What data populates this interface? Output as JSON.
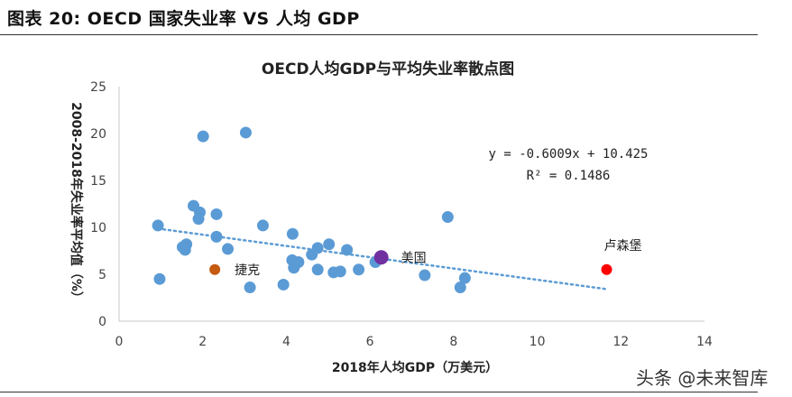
{
  "header": {
    "figure_title": "图表 20:  OECD 国家失业率 VS 人均 GDP"
  },
  "watermark": "头条 @未来智库",
  "chart_data": {
    "type": "scatter",
    "title": "OECD人均GDP与平均失业率散点图",
    "xlabel": "2018年人均GDP（万美元）",
    "ylabel": "2008-2018年失业率平均值（%）",
    "xlim": [
      0,
      14
    ],
    "ylim": [
      0,
      25
    ],
    "xticks": [
      "0",
      "2",
      "4",
      "6",
      "8",
      "10",
      "12",
      "14"
    ],
    "yticks": [
      "0",
      "5",
      "10",
      "15",
      "20",
      "25"
    ],
    "grid": false,
    "colors": {
      "default": "#5B9BD5",
      "czech": "#C55A11",
      "usa": "#7030A0",
      "luxembourg": "#FF0000",
      "trendline": "#5B9BD5"
    },
    "points": [
      {
        "x": 0.93,
        "y": 10.2
      },
      {
        "x": 0.97,
        "y": 4.5
      },
      {
        "x": 2.01,
        "y": 19.7
      },
      {
        "x": 3.03,
        "y": 20.1
      },
      {
        "x": 1.78,
        "y": 12.3
      },
      {
        "x": 1.93,
        "y": 11.6
      },
      {
        "x": 1.9,
        "y": 10.9
      },
      {
        "x": 2.33,
        "y": 11.4
      },
      {
        "x": 1.61,
        "y": 8.2
      },
      {
        "x": 1.52,
        "y": 7.9
      },
      {
        "x": 1.58,
        "y": 7.6
      },
      {
        "x": 2.33,
        "y": 9.0
      },
      {
        "x": 2.6,
        "y": 7.7
      },
      {
        "x": 3.44,
        "y": 10.2
      },
      {
        "x": 4.15,
        "y": 9.3
      },
      {
        "x": 3.13,
        "y": 3.6
      },
      {
        "x": 3.93,
        "y": 3.9
      },
      {
        "x": 4.14,
        "y": 6.5
      },
      {
        "x": 4.29,
        "y": 6.3
      },
      {
        "x": 4.18,
        "y": 5.7
      },
      {
        "x": 4.61,
        "y": 7.1
      },
      {
        "x": 4.75,
        "y": 7.8
      },
      {
        "x": 5.02,
        "y": 8.2
      },
      {
        "x": 5.45,
        "y": 7.6
      },
      {
        "x": 4.75,
        "y": 5.5
      },
      {
        "x": 5.13,
        "y": 5.2
      },
      {
        "x": 5.29,
        "y": 5.3
      },
      {
        "x": 5.73,
        "y": 5.5
      },
      {
        "x": 6.13,
        "y": 6.3
      },
      {
        "x": 7.31,
        "y": 4.9
      },
      {
        "x": 7.86,
        "y": 11.1
      },
      {
        "x": 8.27,
        "y": 4.6
      },
      {
        "x": 8.16,
        "y": 3.6
      }
    ],
    "highlighted": [
      {
        "label": "捷克",
        "x": 2.29,
        "y": 5.5,
        "color": "#C55A11"
      },
      {
        "label": "美国",
        "x": 6.27,
        "y": 6.8,
        "color": "#7030A0"
      },
      {
        "label": "卢森堡",
        "x": 11.66,
        "y": 5.5,
        "color": "#FF0000"
      }
    ],
    "trendline": {
      "slope": -0.6009,
      "intercept": 10.425,
      "x_range": [
        0.93,
        11.66
      ],
      "style": "dotted"
    },
    "equation": "y = -0.6009x + 10.425",
    "r_squared": "R² = 0.1486"
  }
}
